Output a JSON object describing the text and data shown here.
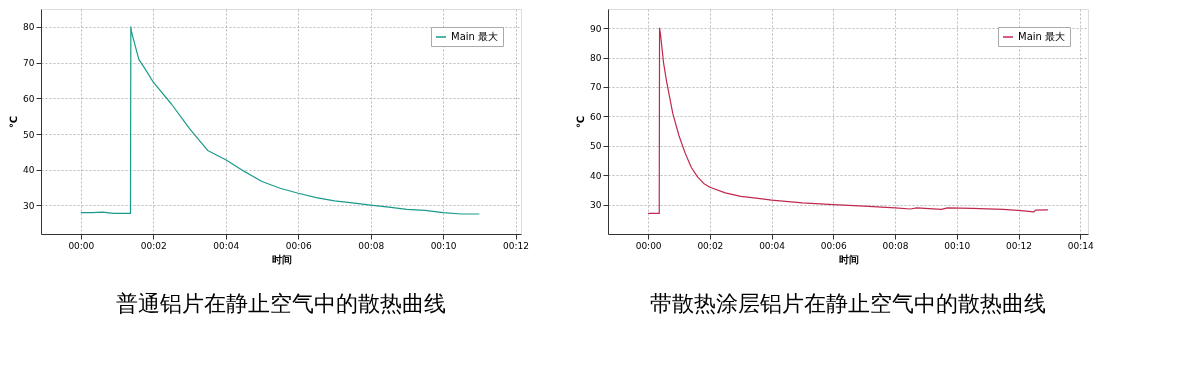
{
  "chart_data": [
    {
      "type": "line",
      "title": "普通铝片在静止空气中的散热曲线",
      "xlabel": "时间",
      "ylabel": "℃",
      "xlim": [
        -1.1,
        12.15
      ],
      "ylim": [
        22,
        85
      ],
      "xticks": [
        {
          "value": 0,
          "label": "00:00"
        },
        {
          "value": 2,
          "label": "00:02"
        },
        {
          "value": 4,
          "label": "00:04"
        },
        {
          "value": 6,
          "label": "00:06"
        },
        {
          "value": 8,
          "label": "00:08"
        },
        {
          "value": 10,
          "label": "00:10"
        },
        {
          "value": 12,
          "label": "00:12"
        }
      ],
      "yticks": [
        30,
        40,
        50,
        60,
        70,
        80
      ],
      "grid": true,
      "legend": "top right",
      "marker": "none",
      "line_style": "solid",
      "series": [
        {
          "name": "Main 最大",
          "color": "#1a9a8a",
          "x": [
            0,
            0.3,
            0.6,
            0.9,
            1.2,
            1.37,
            1.38,
            1.4,
            1.6,
            1.8,
            2.0,
            2.5,
            3.0,
            3.5,
            4.0,
            4.5,
            5.0,
            5.5,
            6.0,
            6.5,
            7.0,
            7.5,
            8.0,
            8.5,
            9.0,
            9.5,
            10.0,
            10.5,
            11.0
          ],
          "values": [
            28,
            28,
            28.1,
            27.8,
            27.8,
            27.8,
            80,
            78.5,
            70.9,
            67.8,
            64.5,
            58.4,
            51.5,
            45.4,
            42.8,
            39.6,
            36.7,
            34.8,
            33.4,
            32.2,
            31.3,
            30.7,
            30.1,
            29.5,
            28.9,
            28.6,
            28,
            27.6,
            27.6
          ]
        }
      ]
    },
    {
      "type": "line",
      "title": "带散热涂层铝片在静止空气中的散热曲线",
      "xlabel": "时间",
      "ylabel": "℃",
      "xlim": [
        -1.3,
        14.25
      ],
      "ylim": [
        20,
        96.5
      ],
      "xticks": [
        {
          "value": 0,
          "label": "00:00"
        },
        {
          "value": 2,
          "label": "00:02"
        },
        {
          "value": 4,
          "label": "00:04"
        },
        {
          "value": 6,
          "label": "00:06"
        },
        {
          "value": 8,
          "label": "00:08"
        },
        {
          "value": 10,
          "label": "00:10"
        },
        {
          "value": 12,
          "label": "00:12"
        },
        {
          "value": 14,
          "label": "00:14"
        }
      ],
      "yticks": [
        30,
        40,
        50,
        60,
        70,
        80,
        90
      ],
      "grid": true,
      "legend": "top right",
      "marker": "none",
      "line_style": "solid",
      "series": [
        {
          "name": "Main 最大",
          "color": "#c0284e",
          "x": [
            0,
            0.2,
            0.36,
            0.37,
            0.4,
            0.5,
            0.6,
            0.8,
            1.0,
            1.2,
            1.4,
            1.6,
            1.8,
            2.0,
            2.5,
            3.0,
            3.5,
            4.0,
            5.0,
            6.0,
            7.0,
            8.0,
            8.5,
            8.7,
            9.5,
            9.7,
            10.5,
            11.5,
            12.0,
            12.5,
            12.55,
            12.95
          ],
          "values": [
            27,
            27,
            27,
            90,
            88,
            78.2,
            71.7,
            60.9,
            53.4,
            47.5,
            42.6,
            39.4,
            37.2,
            35.9,
            34.0,
            32.8,
            32.2,
            31.5,
            30.6,
            30.0,
            29.5,
            28.9,
            28.5,
            28.9,
            28.4,
            28.9,
            28.7,
            28.4,
            28.0,
            27.5,
            28.1,
            28.2
          ]
        }
      ]
    }
  ]
}
